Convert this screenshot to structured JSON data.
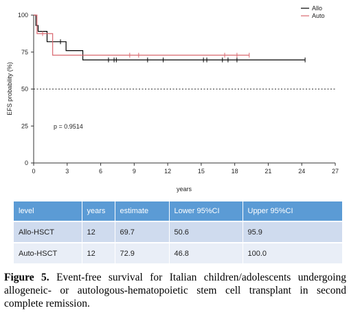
{
  "chart_data": {
    "type": "line",
    "subtype": "kaplan-meier step",
    "title": "",
    "xlabel": "years",
    "ylabel": "EFS probability (%)",
    "xlim": [
      0,
      27
    ],
    "ylim": [
      0,
      100
    ],
    "xticks": [
      0,
      3,
      6,
      9,
      12,
      15,
      18,
      21,
      24,
      27
    ],
    "yticks": [
      0,
      25,
      50,
      75,
      100
    ],
    "reference_line": {
      "y": 50,
      "style": "dotted"
    },
    "annotation": "p = 0.9514",
    "legend": {
      "placement": "top-right",
      "entries": [
        "Allo",
        "Auto"
      ]
    },
    "series": [
      {
        "name": "Allo",
        "color": "#000000",
        "steps": [
          [
            0,
            100
          ],
          [
            0.2,
            93
          ],
          [
            0.4,
            89
          ],
          [
            1.2,
            82
          ],
          [
            2.9,
            76
          ],
          [
            4.4,
            69.7
          ],
          [
            24.3,
            69.7
          ]
        ],
        "censored": [
          2.4,
          6.7,
          7.2,
          7.4,
          10.2,
          11.6,
          15.2,
          15.5,
          16.9,
          17.4,
          18.2,
          24.3
        ]
      },
      {
        "name": "Auto",
        "color": "#d9676f",
        "steps": [
          [
            0,
            100
          ],
          [
            0.3,
            87.5
          ],
          [
            1.7,
            72.9
          ],
          [
            19.3,
            72.9
          ]
        ],
        "censored": [
          0.8,
          8.6,
          9.4,
          17.1,
          18.2,
          19.3
        ]
      }
    ]
  },
  "table": {
    "headers": [
      "level",
      "years",
      "estimate",
      "Lower 95%CI",
      "Upper 95%CI"
    ],
    "rows": [
      [
        "Allo-HSCT",
        "12",
        "69.7",
        "50.6",
        "95.9"
      ],
      [
        "Auto-HSCT",
        "12",
        "72.9",
        "46.8",
        "100.0"
      ]
    ]
  },
  "caption": {
    "label": "Figure 5.",
    "text": "Event-free survival for Italian children/adolescents undergoing allogeneic- or autologous-hematopoietic stem cell transplant in second complete remission."
  }
}
